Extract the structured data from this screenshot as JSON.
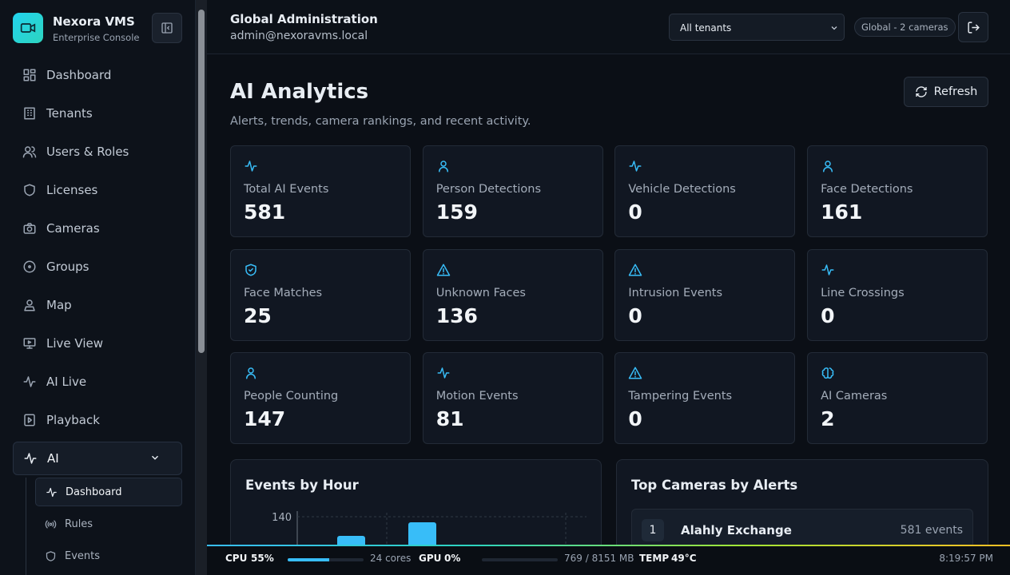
{
  "sidebar": {
    "brand": "Nexora VMS",
    "subtitle": "Enterprise Console",
    "nav": [
      "Dashboard",
      "Tenants",
      "Users & Roles",
      "Licenses",
      "Cameras",
      "Groups",
      "Map",
      "Live View",
      "AI Live",
      "Playback",
      "AI"
    ],
    "subnav": [
      "Dashboard",
      "Rules",
      "Events"
    ]
  },
  "header": {
    "title": "Global Administration",
    "email": "admin@nexoravms.local",
    "tenant_select": "All tenants",
    "scope": "Global - 2 cameras"
  },
  "page": {
    "title": "AI Analytics",
    "subtitle": "Alerts, trends, camera rankings, and recent activity.",
    "refresh": "Refresh"
  },
  "stats": [
    {
      "label": "Total AI Events",
      "value": 581
    },
    {
      "label": "Person Detections",
      "value": 159
    },
    {
      "label": "Vehicle Detections",
      "value": 0
    },
    {
      "label": "Face Detections",
      "value": 161
    },
    {
      "label": "Face Matches",
      "value": 25
    },
    {
      "label": "Unknown Faces",
      "value": 136
    },
    {
      "label": "Intrusion Events",
      "value": 0
    },
    {
      "label": "Line Crossings",
      "value": 0
    },
    {
      "label": "People Counting",
      "value": 147
    },
    {
      "label": "Motion Events",
      "value": 81
    },
    {
      "label": "Tampering Events",
      "value": 0
    },
    {
      "label": "AI Cameras",
      "value": 2
    }
  ],
  "events_by_hour": {
    "title": "Events by Hour",
    "yticks": [
      140
    ]
  },
  "top_cameras": {
    "title": "Top Cameras by Alerts",
    "rows": [
      {
        "rank": 1,
        "name": "Alahly Exchange",
        "events": "581 events"
      }
    ]
  },
  "status_bar": {
    "cpu_label": "CPU",
    "cpu": {
      "value": 55,
      "label": "55%"
    },
    "cores": "24 cores",
    "gpu_label": "GPU",
    "gpu": {
      "value": 0,
      "label": "0%"
    },
    "memory": {
      "used": 769,
      "total": 8151,
      "label": "769 / 8151 MB"
    },
    "temp_label": "TEMP",
    "temp": "49°C",
    "time": "8:19:57 PM"
  }
}
